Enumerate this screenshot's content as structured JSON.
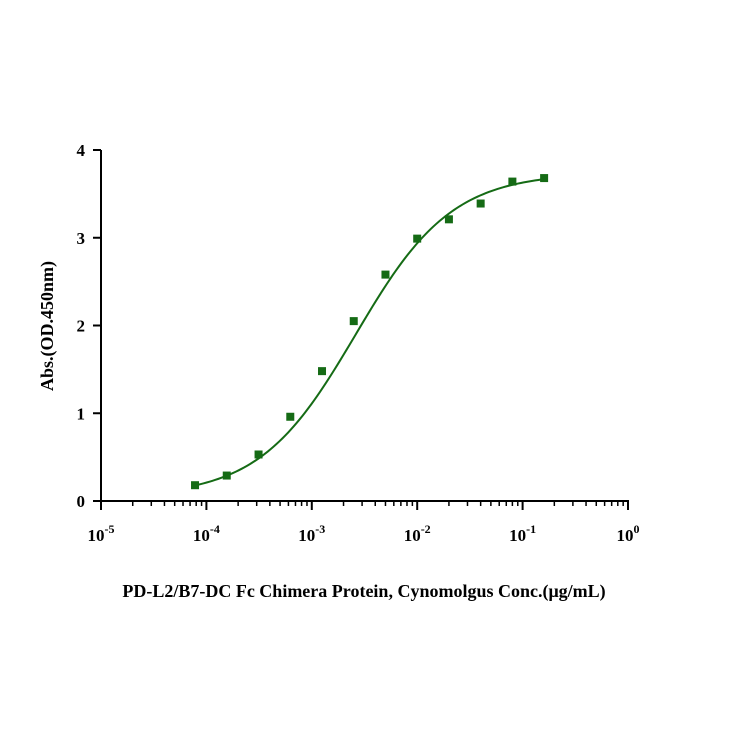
{
  "chart_data": {
    "type": "scatter",
    "title": "",
    "xlabel": "PD-L2/B7-DC Fc Chimera Protein, Cynomolgus Conc.(μg/mL)",
    "ylabel": "Abs.(OD.450nm)",
    "xscale": "log",
    "xlim_exponents": [
      -5,
      0
    ],
    "ylim": [
      0,
      4
    ],
    "grid": false,
    "legend": "none",
    "x_ticks": [
      {
        "base": "10",
        "exp": "-5"
      },
      {
        "base": "10",
        "exp": "-4"
      },
      {
        "base": "10",
        "exp": "-3"
      },
      {
        "base": "10",
        "exp": "-2"
      },
      {
        "base": "10",
        "exp": "-1"
      },
      {
        "base": "10",
        "exp": "0"
      }
    ],
    "y_ticks": [
      "0",
      "1",
      "2",
      "3",
      "4"
    ],
    "series": [
      {
        "name": "PD-L2/B7-DC Fc Chimera Protein, Cynomolgus",
        "color": "#156b15",
        "marker": "square",
        "x": [
          7.8e-05,
          0.000156,
          0.0003125,
          0.000625,
          0.00125,
          0.0025,
          0.005,
          0.01,
          0.02,
          0.04,
          0.08,
          0.16
        ],
        "y": [
          0.18,
          0.29,
          0.53,
          0.96,
          1.48,
          2.05,
          2.58,
          2.99,
          3.21,
          3.39,
          3.64,
          3.68
        ]
      }
    ],
    "fit": {
      "type": "4PL",
      "color": "#156b15",
      "bottom": 0.05,
      "top": 3.74,
      "ec50": 0.0026,
      "hill": 0.95,
      "x_range": [
        7.8e-05,
        0.16
      ]
    }
  }
}
